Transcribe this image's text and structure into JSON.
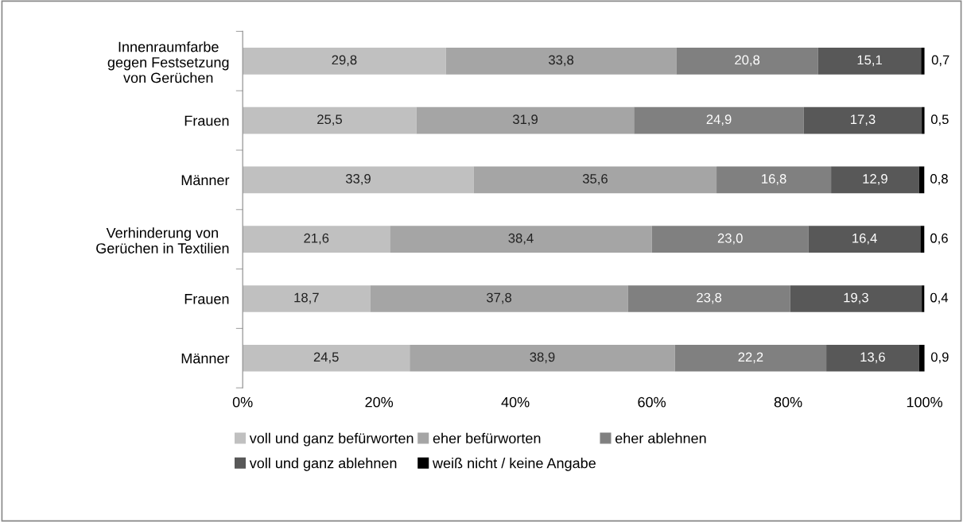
{
  "chart_data": {
    "type": "bar",
    "orientation": "horizontal",
    "stacked": true,
    "categories": [
      "Innenraumfarbe\ngegen Festsetzung\nvon Gerüchen",
      "Frauen",
      "Männer",
      "Verhinderung von\nGerüchen in Textilien",
      "Frauen",
      "Männer"
    ],
    "series": [
      {
        "name": "voll und ganz befürworten",
        "color": "#c0c0c0",
        "values": [
          29.8,
          25.5,
          33.9,
          21.6,
          18.7,
          24.5
        ],
        "value_labels": [
          "29,8",
          "25,5",
          "33,9",
          "21,6",
          "18,7",
          "24,5"
        ]
      },
      {
        "name": "eher befürworten",
        "color": "#a5a5a5",
        "values": [
          33.8,
          31.9,
          35.6,
          38.4,
          37.8,
          38.9
        ],
        "value_labels": [
          "33,8",
          "31,9",
          "35,6",
          "38,4",
          "37,8",
          "38,9"
        ]
      },
      {
        "name": "eher ablehnen",
        "color": "#808080",
        "values": [
          20.8,
          24.9,
          16.8,
          23.0,
          23.8,
          22.2
        ],
        "value_labels": [
          "20,8",
          "24,9",
          "16,8",
          "23,0",
          "23,8",
          "22,2"
        ]
      },
      {
        "name": "voll und ganz ablehnen",
        "color": "#585858",
        "values": [
          15.1,
          17.3,
          12.9,
          16.4,
          19.3,
          13.6
        ],
        "value_labels": [
          "15,1",
          "17,3",
          "12,9",
          "16,4",
          "19,3",
          "13,6"
        ]
      },
      {
        "name": "weiß nicht / keine Angabe",
        "color": "#000000",
        "values": [
          0.7,
          0.5,
          0.8,
          0.6,
          0.4,
          0.9
        ],
        "value_labels": [
          "0,7",
          "0,5",
          "0,8",
          "0,6",
          "0,4",
          "0,9"
        ]
      }
    ],
    "xlim": [
      0,
      100
    ],
    "xticks": [
      {
        "value": 0,
        "label": "0%"
      },
      {
        "value": 20,
        "label": "20%"
      },
      {
        "value": 40,
        "label": "40%"
      },
      {
        "value": 60,
        "label": "60%"
      },
      {
        "value": 80,
        "label": "80%"
      },
      {
        "value": 100,
        "label": "100%"
      }
    ],
    "grid": false,
    "legend": "bottom"
  }
}
